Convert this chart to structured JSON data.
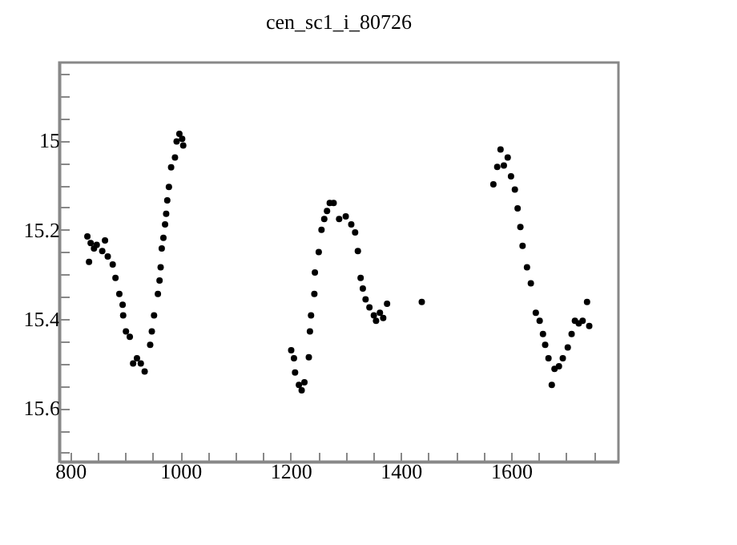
{
  "chart_data": {
    "type": "scatter",
    "title": "cen_sc1_i_80726",
    "color": "#000000",
    "marker": "circle",
    "x": [
      831,
      834,
      837,
      843,
      848,
      858,
      863,
      868,
      877,
      882,
      889,
      895,
      896,
      901,
      908,
      914,
      921,
      928,
      935,
      945,
      948,
      952,
      959,
      962,
      964,
      966,
      969,
      972,
      974,
      976,
      979,
      983,
      990,
      993,
      998,
      1003,
      1005,
      1201,
      1206,
      1208,
      1215,
      1220,
      1225,
      1233,
      1235,
      1237,
      1243,
      1244,
      1251,
      1256,
      1261,
      1266,
      1271,
      1278,
      1288,
      1300,
      1310,
      1317,
      1322,
      1327,
      1331,
      1336,
      1343,
      1351,
      1355,
      1362,
      1368,
      1375,
      1438,
      1568,
      1575,
      1581,
      1587,
      1594,
      1600,
      1607,
      1612,
      1617,
      1621,
      1629,
      1636,
      1645,
      1652,
      1658,
      1662,
      1668,
      1674,
      1679,
      1687,
      1694,
      1703,
      1710,
      1716,
      1723,
      1730,
      1738,
      1742
    ],
    "values": [
      15.215,
      15.272,
      15.23,
      15.242,
      15.234,
      15.248,
      15.224,
      15.26,
      15.278,
      15.308,
      15.344,
      15.368,
      15.392,
      15.428,
      15.44,
      15.5,
      15.488,
      15.5,
      15.518,
      15.458,
      15.428,
      15.392,
      15.344,
      15.314,
      15.284,
      15.242,
      15.218,
      15.188,
      15.164,
      15.134,
      15.104,
      15.06,
      15.038,
      15.002,
      14.985,
      14.996,
      15.011,
      15.47,
      15.488,
      15.52,
      15.548,
      15.56,
      15.542,
      15.486,
      15.428,
      15.392,
      15.344,
      15.296,
      15.25,
      15.2,
      15.176,
      15.158,
      15.14,
      15.14,
      15.176,
      15.17,
      15.188,
      15.206,
      15.248,
      15.308,
      15.332,
      15.356,
      15.374,
      15.392,
      15.404,
      15.386,
      15.398,
      15.366,
      15.362,
      15.098,
      15.059,
      15.02,
      15.056,
      15.038,
      15.08,
      15.11,
      15.152,
      15.194,
      15.236,
      15.284,
      15.32,
      15.386,
      15.404,
      15.434,
      15.458,
      15.488,
      15.548,
      15.512,
      15.506,
      15.488,
      15.464,
      15.434,
      15.404,
      15.41,
      15.404,
      15.362,
      15.416
    ],
    "xlim": [
      780,
      1795
    ],
    "ylim": [
      15.72,
      14.825
    ],
    "xticks": [
      800,
      {
        "value": 850,
        "label": null
      },
      {
        "value": 900,
        "label": null
      },
      {
        "value": 950,
        "label": null
      },
      1000,
      {
        "value": 1050,
        "label": null
      },
      {
        "value": 1100,
        "label": null
      },
      {
        "value": 1150,
        "label": null
      },
      1200,
      {
        "value": 1250,
        "label": null
      },
      {
        "value": 1300,
        "label": null
      },
      {
        "value": 1350,
        "label": null
      },
      1400,
      {
        "value": 1450,
        "label": null
      },
      {
        "value": 1500,
        "label": null
      },
      {
        "value": 1550,
        "label": null
      },
      1600,
      {
        "value": 1650,
        "label": null
      },
      {
        "value": 1700,
        "label": null
      },
      {
        "value": 1750,
        "label": null
      }
    ],
    "yticks": [
      {
        "value": 14.85,
        "label": null
      },
      {
        "value": 14.9,
        "label": null
      },
      {
        "value": 14.95,
        "label": null
      },
      15,
      {
        "value": 15.05,
        "label": null
      },
      {
        "value": 15.1,
        "label": null
      },
      {
        "value": 15.15,
        "label": null
      },
      15.2,
      {
        "value": 15.25,
        "label": null
      },
      {
        "value": 15.3,
        "label": null
      },
      {
        "value": 15.35,
        "label": null
      },
      15.4,
      {
        "value": 15.45,
        "label": null
      },
      {
        "value": 15.5,
        "label": null
      },
      {
        "value": 15.55,
        "label": null
      },
      15.6,
      {
        "value": 15.65,
        "label": null
      },
      {
        "value": 15.7,
        "label": null
      }
    ]
  }
}
